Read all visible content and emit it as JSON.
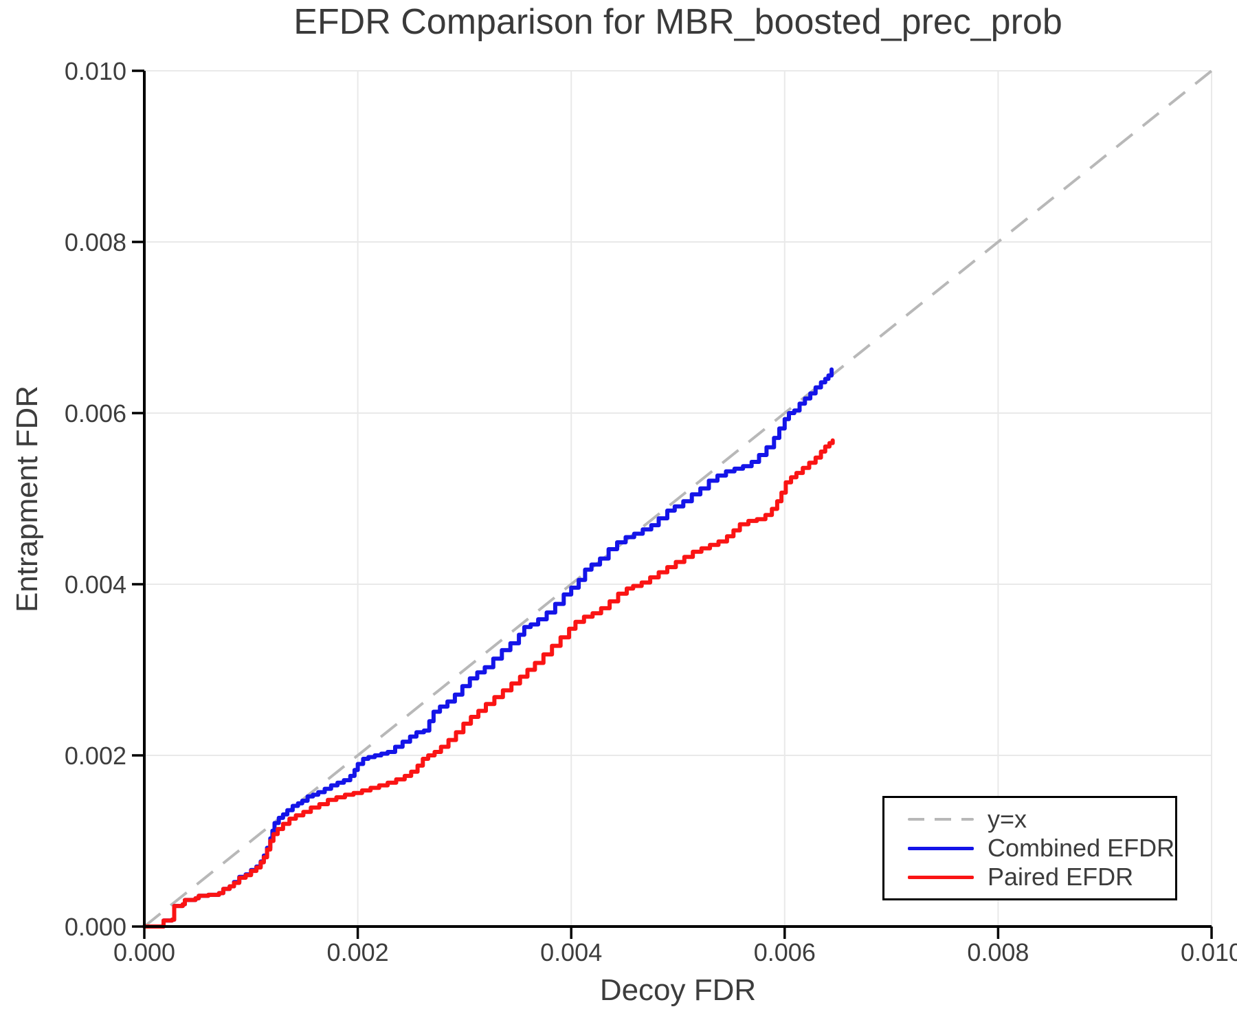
{
  "title": "EFDR Comparison for MBR_boosted_prec_prob",
  "axes": {
    "x_label": "Decoy FDR",
    "y_label": "Entrapment FDR",
    "x_tick_labels": [
      "0.000",
      "0.002",
      "0.004",
      "0.006",
      "0.008",
      "0.010"
    ],
    "y_tick_labels": [
      "0.000",
      "0.002",
      "0.004",
      "0.006",
      "0.008",
      "0.010"
    ]
  },
  "legend": {
    "items": [
      {
        "label": "y=x",
        "style": "dashed",
        "color": "#b8b8b8"
      },
      {
        "label": "Combined EFDR",
        "style": "solid",
        "color": "#1414e8"
      },
      {
        "label": "Paired EFDR",
        "style": "solid",
        "color": "#fa1414"
      }
    ]
  },
  "colors": {
    "grid": "#e9e9e9",
    "spine": "#000000",
    "tick_text": "#3d3d3d",
    "reference_line": "#b8b8b8",
    "combined": "#1414e8",
    "paired": "#fa1414"
  },
  "chart_data": {
    "type": "line",
    "title": "EFDR Comparison for MBR_boosted_prec_prob",
    "xlabel": "Decoy FDR",
    "ylabel": "Entrapment FDR",
    "xlim": [
      0.0,
      0.01
    ],
    "ylim": [
      0.0,
      0.01
    ],
    "x_ticks": [
      0.0,
      0.002,
      0.004,
      0.006,
      0.008,
      0.01
    ],
    "y_ticks": [
      0.0,
      0.002,
      0.004,
      0.006,
      0.008,
      0.01
    ],
    "grid": true,
    "legend_position": "lower right",
    "reference_line": {
      "name": "y=x",
      "from": [
        0.0,
        0.0
      ],
      "to": [
        0.01,
        0.01
      ],
      "style": "dashed",
      "color": "#b8b8b8"
    },
    "series": [
      {
        "name": "Combined EFDR",
        "color": "#1414e8",
        "points": [
          [
            0.0,
            0.0
          ],
          [
            0.00017,
            0.0
          ],
          [
            0.00018,
            7e-05
          ],
          [
            0.00026,
            8e-05
          ],
          [
            0.00028,
            0.00024
          ],
          [
            0.00036,
            0.00026
          ],
          [
            0.00038,
            0.00031
          ],
          [
            0.00048,
            0.00033
          ],
          [
            0.00051,
            0.00036
          ],
          [
            0.0006,
            0.00037
          ],
          [
            0.0007,
            0.00039
          ],
          [
            0.00074,
            0.00044
          ],
          [
            0.0008,
            0.00047
          ],
          [
            0.00084,
            0.00052
          ],
          [
            0.00089,
            0.00058
          ],
          [
            0.00095,
            0.00061
          ],
          [
            0.001,
            0.00066
          ],
          [
            0.00105,
            0.0007
          ],
          [
            0.00109,
            0.00076
          ],
          [
            0.00112,
            0.00083
          ],
          [
            0.00115,
            0.00092
          ],
          [
            0.00118,
            0.00103
          ],
          [
            0.0012,
            0.00112
          ],
          [
            0.00122,
            0.00121
          ],
          [
            0.00126,
            0.00127
          ],
          [
            0.0013,
            0.00131
          ],
          [
            0.00134,
            0.00136
          ],
          [
            0.00139,
            0.00141
          ],
          [
            0.00144,
            0.00144
          ],
          [
            0.00148,
            0.00147
          ],
          [
            0.00153,
            0.00152
          ],
          [
            0.00158,
            0.00154
          ],
          [
            0.00163,
            0.00157
          ],
          [
            0.00169,
            0.00161
          ],
          [
            0.00175,
            0.00165
          ],
          [
            0.00181,
            0.00168
          ],
          [
            0.00187,
            0.00171
          ],
          [
            0.00193,
            0.00176
          ],
          [
            0.00197,
            0.00183
          ],
          [
            0.002,
            0.0019
          ],
          [
            0.00205,
            0.00196
          ],
          [
            0.0021,
            0.00198
          ],
          [
            0.00216,
            0.002
          ],
          [
            0.00222,
            0.00202
          ],
          [
            0.00228,
            0.00204
          ],
          [
            0.00235,
            0.0021
          ],
          [
            0.00242,
            0.00216
          ],
          [
            0.00249,
            0.00222
          ],
          [
            0.00255,
            0.00227
          ],
          [
            0.00262,
            0.00229
          ],
          [
            0.00267,
            0.0024
          ],
          [
            0.00271,
            0.00251
          ],
          [
            0.00277,
            0.00257
          ],
          [
            0.00284,
            0.00263
          ],
          [
            0.00291,
            0.00271
          ],
          [
            0.00298,
            0.00281
          ],
          [
            0.00305,
            0.0029
          ],
          [
            0.00312,
            0.00297
          ],
          [
            0.00319,
            0.00303
          ],
          [
            0.00327,
            0.00313
          ],
          [
            0.00335,
            0.00323
          ],
          [
            0.00343,
            0.00331
          ],
          [
            0.00351,
            0.00341
          ],
          [
            0.00356,
            0.0035
          ],
          [
            0.00362,
            0.00353
          ],
          [
            0.00369,
            0.00359
          ],
          [
            0.00377,
            0.00367
          ],
          [
            0.00385,
            0.00377
          ],
          [
            0.00393,
            0.00388
          ],
          [
            0.004,
            0.00396
          ],
          [
            0.00407,
            0.00405
          ],
          [
            0.00413,
            0.00417
          ],
          [
            0.00419,
            0.00423
          ],
          [
            0.00427,
            0.0043
          ],
          [
            0.00435,
            0.00441
          ],
          [
            0.00443,
            0.00449
          ],
          [
            0.00451,
            0.00455
          ],
          [
            0.00459,
            0.00459
          ],
          [
            0.00467,
            0.00464
          ],
          [
            0.00475,
            0.00469
          ],
          [
            0.00482,
            0.00477
          ],
          [
            0.0049,
            0.00486
          ],
          [
            0.00497,
            0.00491
          ],
          [
            0.00505,
            0.00497
          ],
          [
            0.00513,
            0.00505
          ],
          [
            0.00521,
            0.00512
          ],
          [
            0.00529,
            0.00521
          ],
          [
            0.00537,
            0.00527
          ],
          [
            0.00545,
            0.00532
          ],
          [
            0.00553,
            0.00535
          ],
          [
            0.00561,
            0.00538
          ],
          [
            0.00569,
            0.00543
          ],
          [
            0.00576,
            0.00551
          ],
          [
            0.00583,
            0.0056
          ],
          [
            0.0059,
            0.00571
          ],
          [
            0.00595,
            0.00582
          ],
          [
            0.006,
            0.00593
          ],
          [
            0.00604,
            0.006
          ],
          [
            0.00609,
            0.00603
          ],
          [
            0.00614,
            0.00611
          ],
          [
            0.00619,
            0.00617
          ],
          [
            0.00624,
            0.00623
          ],
          [
            0.00629,
            0.0063
          ],
          [
            0.00634,
            0.00636
          ],
          [
            0.00638,
            0.0064
          ],
          [
            0.00641,
            0.00644
          ],
          [
            0.00644,
            0.00651
          ]
        ]
      },
      {
        "name": "Paired EFDR",
        "color": "#fa1414",
        "points": [
          [
            0.0,
            0.0
          ],
          [
            0.00017,
            0.0
          ],
          [
            0.00018,
            7e-05
          ],
          [
            0.00026,
            8e-05
          ],
          [
            0.00028,
            0.00024
          ],
          [
            0.00036,
            0.00026
          ],
          [
            0.00038,
            0.00031
          ],
          [
            0.00048,
            0.00033
          ],
          [
            0.00051,
            0.00036
          ],
          [
            0.0006,
            0.00037
          ],
          [
            0.0007,
            0.00039
          ],
          [
            0.00074,
            0.00044
          ],
          [
            0.0008,
            0.00047
          ],
          [
            0.00084,
            0.00051
          ],
          [
            0.00089,
            0.00057
          ],
          [
            0.00095,
            0.0006
          ],
          [
            0.001,
            0.00065
          ],
          [
            0.00105,
            0.00069
          ],
          [
            0.00109,
            0.00075
          ],
          [
            0.00112,
            0.00081
          ],
          [
            0.00115,
            0.0009
          ],
          [
            0.00118,
            0.001
          ],
          [
            0.00121,
            0.00108
          ],
          [
            0.00125,
            0.00114
          ],
          [
            0.0013,
            0.0012
          ],
          [
            0.00136,
            0.00126
          ],
          [
            0.00142,
            0.0013
          ],
          [
            0.00149,
            0.00134
          ],
          [
            0.00156,
            0.00139
          ],
          [
            0.00164,
            0.00143
          ],
          [
            0.00172,
            0.00148
          ],
          [
            0.0018,
            0.00151
          ],
          [
            0.00188,
            0.00154
          ],
          [
            0.00196,
            0.00156
          ],
          [
            0.00204,
            0.00159
          ],
          [
            0.00212,
            0.00162
          ],
          [
            0.0022,
            0.00165
          ],
          [
            0.00228,
            0.00168
          ],
          [
            0.00236,
            0.00172
          ],
          [
            0.00244,
            0.00176
          ],
          [
            0.0025,
            0.00181
          ],
          [
            0.00256,
            0.00188
          ],
          [
            0.00261,
            0.00196
          ],
          [
            0.00266,
            0.002
          ],
          [
            0.00272,
            0.00204
          ],
          [
            0.00278,
            0.0021
          ],
          [
            0.00285,
            0.00218
          ],
          [
            0.00292,
            0.00227
          ],
          [
            0.00299,
            0.00237
          ],
          [
            0.00306,
            0.00245
          ],
          [
            0.00313,
            0.00252
          ],
          [
            0.0032,
            0.0026
          ],
          [
            0.00328,
            0.00268
          ],
          [
            0.00336,
            0.00276
          ],
          [
            0.00344,
            0.00284
          ],
          [
            0.00352,
            0.00292
          ],
          [
            0.00359,
            0.003
          ],
          [
            0.00366,
            0.00308
          ],
          [
            0.00374,
            0.00318
          ],
          [
            0.00382,
            0.00328
          ],
          [
            0.0039,
            0.00338
          ],
          [
            0.00398,
            0.00348
          ],
          [
            0.00404,
            0.00356
          ],
          [
            0.00412,
            0.00362
          ],
          [
            0.0042,
            0.00366
          ],
          [
            0.00428,
            0.00372
          ],
          [
            0.00436,
            0.0038
          ],
          [
            0.00444,
            0.00389
          ],
          [
            0.00452,
            0.00395
          ],
          [
            0.00458,
            0.00398
          ],
          [
            0.00466,
            0.00402
          ],
          [
            0.00474,
            0.00408
          ],
          [
            0.00482,
            0.00414
          ],
          [
            0.0049,
            0.0042
          ],
          [
            0.00498,
            0.00426
          ],
          [
            0.00506,
            0.00432
          ],
          [
            0.00514,
            0.00438
          ],
          [
            0.00522,
            0.00442
          ],
          [
            0.0053,
            0.00446
          ],
          [
            0.00538,
            0.0045
          ],
          [
            0.00546,
            0.00456
          ],
          [
            0.00552,
            0.00463
          ],
          [
            0.00558,
            0.0047
          ],
          [
            0.00566,
            0.00474
          ],
          [
            0.00574,
            0.00476
          ],
          [
            0.00582,
            0.00481
          ],
          [
            0.00588,
            0.00488
          ],
          [
            0.00593,
            0.00497
          ],
          [
            0.00597,
            0.00507
          ],
          [
            0.00601,
            0.00519
          ],
          [
            0.00606,
            0.00525
          ],
          [
            0.00611,
            0.0053
          ],
          [
            0.00617,
            0.00536
          ],
          [
            0.00623,
            0.00542
          ],
          [
            0.00629,
            0.00548
          ],
          [
            0.00634,
            0.00555
          ],
          [
            0.00638,
            0.00561
          ],
          [
            0.00642,
            0.00565
          ],
          [
            0.00645,
            0.00568
          ]
        ]
      }
    ]
  }
}
